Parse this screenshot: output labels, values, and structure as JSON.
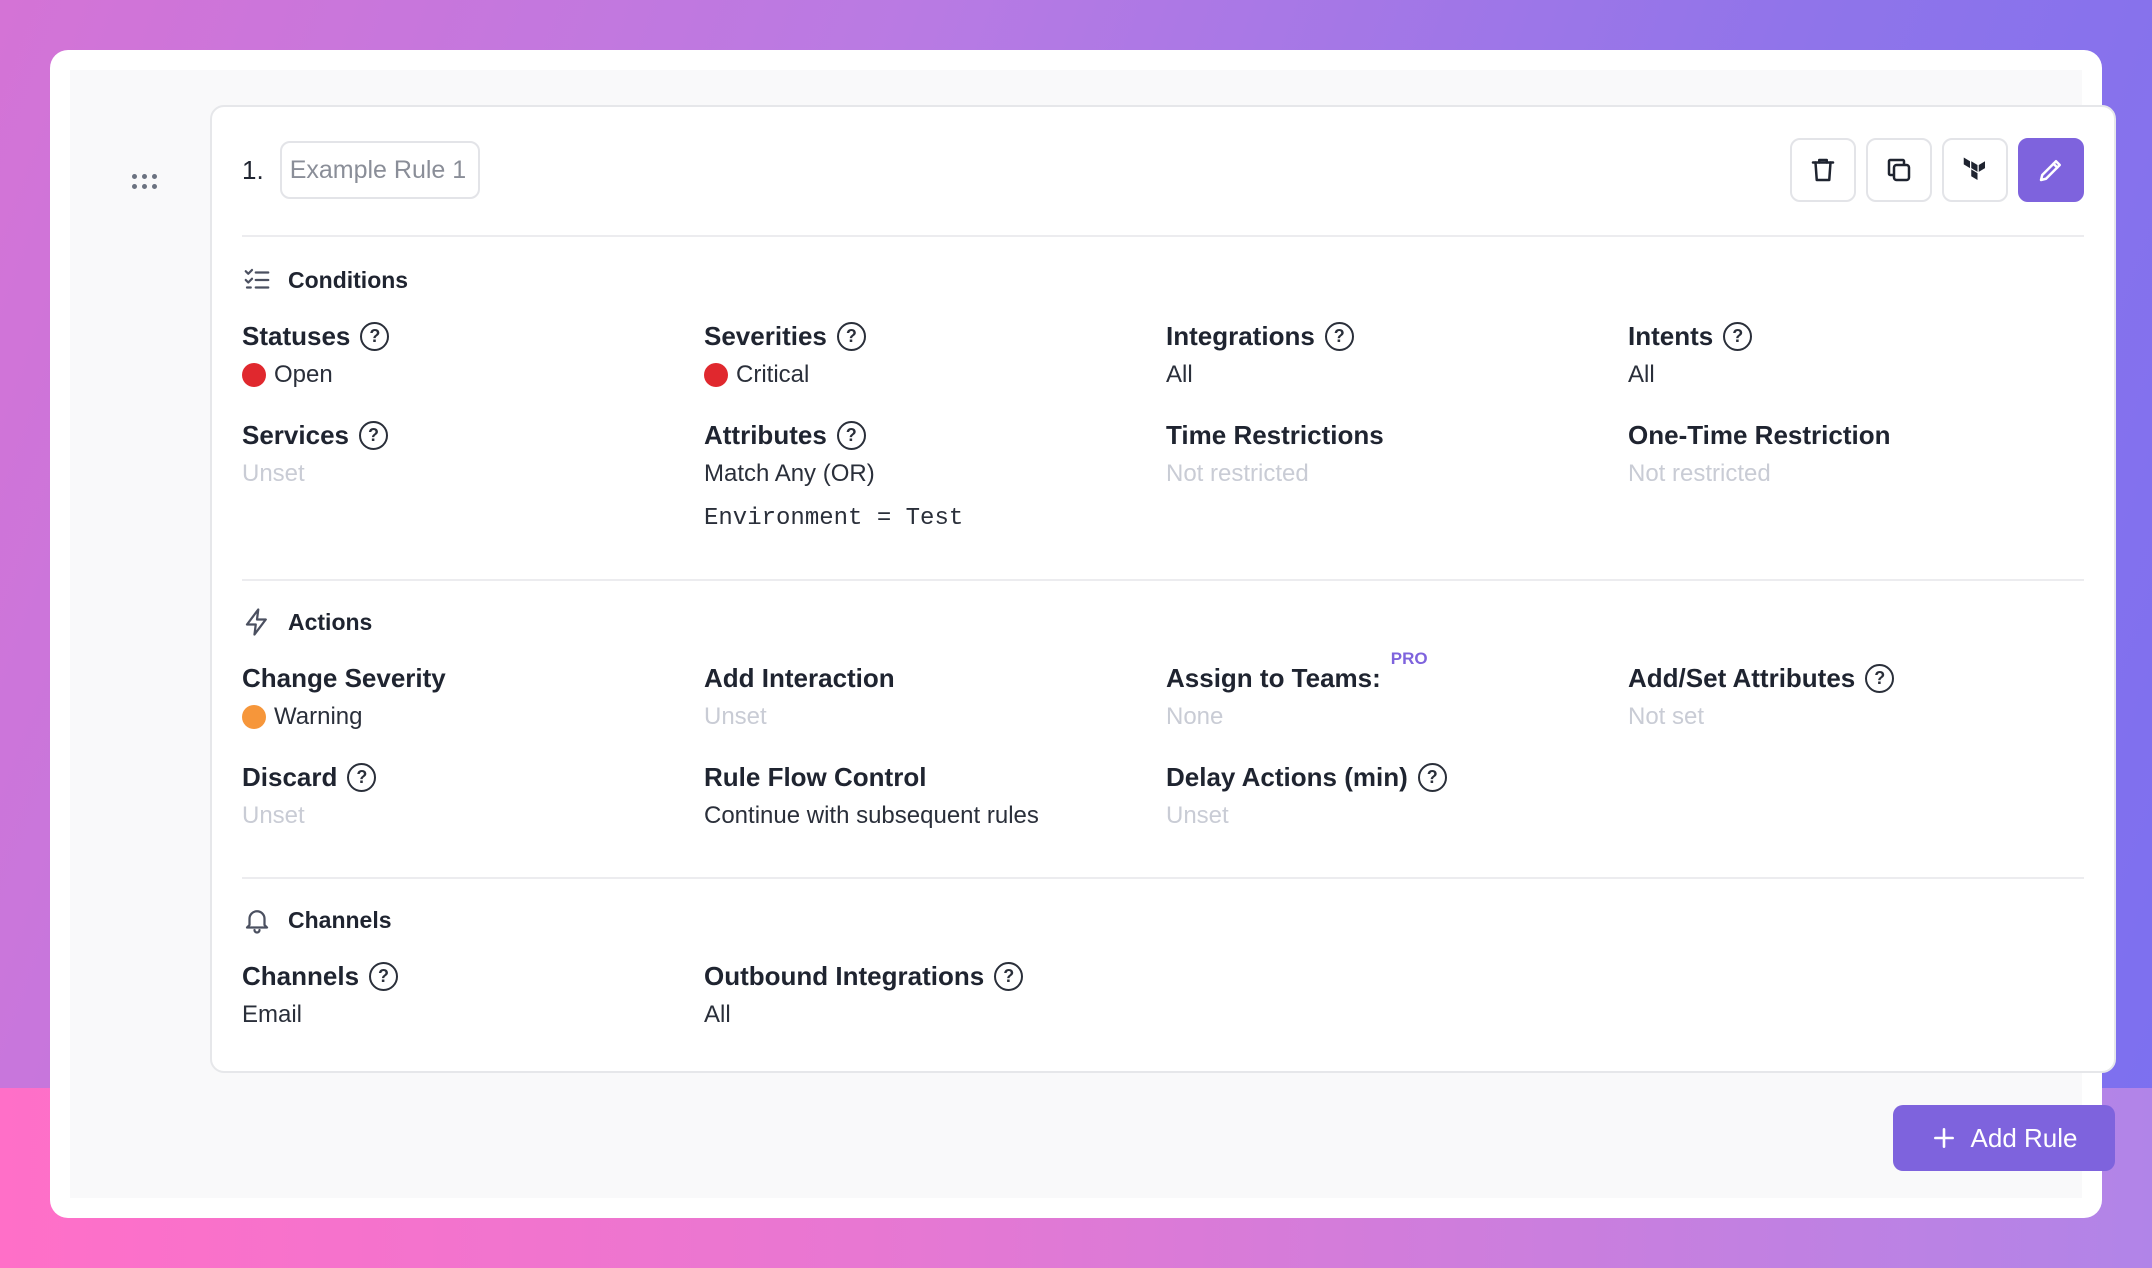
{
  "rule": {
    "number": "1.",
    "name_placeholder": "Example Rule 1",
    "actions": [
      {
        "name": "delete",
        "icon": "trash-icon"
      },
      {
        "name": "duplicate",
        "icon": "copy-icon"
      },
      {
        "name": "terraform",
        "icon": "terraform-icon"
      },
      {
        "name": "edit",
        "icon": "pencil-icon"
      }
    ]
  },
  "conditions": {
    "title": "Conditions",
    "statuses": {
      "label": "Statuses",
      "value": "Open",
      "color": "#e0282e"
    },
    "severities": {
      "label": "Severities",
      "value": "Critical",
      "color": "#e0282e"
    },
    "integrations": {
      "label": "Integrations",
      "value": "All"
    },
    "intents": {
      "label": "Intents",
      "value": "All"
    },
    "services": {
      "label": "Services",
      "value": "Unset"
    },
    "attributes": {
      "label": "Attributes",
      "value": "Match Any (OR)",
      "expression": "Environment = Test"
    },
    "time_restrictions": {
      "label": "Time Restrictions",
      "value": "Not restricted"
    },
    "one_time_restriction": {
      "label": "One-Time Restriction",
      "value": "Not restricted"
    }
  },
  "actions": {
    "title": "Actions",
    "change_severity": {
      "label": "Change Severity",
      "value": "Warning",
      "color": "#f6963a"
    },
    "add_interaction": {
      "label": "Add Interaction",
      "value": "Unset"
    },
    "assign_to_teams": {
      "label": "Assign to Teams:",
      "badge": "PRO",
      "value": "None"
    },
    "add_set_attributes": {
      "label": "Add/Set Attributes",
      "value": "Not set"
    },
    "discard": {
      "label": "Discard",
      "value": "Unset"
    },
    "rule_flow_control": {
      "label": "Rule Flow Control",
      "value": "Continue with subsequent rules"
    },
    "delay_actions": {
      "label": "Delay Actions (min)",
      "value": "Unset"
    }
  },
  "channels": {
    "title": "Channels",
    "channels": {
      "label": "Channels",
      "value": "Email"
    },
    "outbound_integrations": {
      "label": "Outbound Integrations",
      "value": "All"
    }
  },
  "footer": {
    "add_rule_label": "Add Rule"
  },
  "help_glyph": "?"
}
